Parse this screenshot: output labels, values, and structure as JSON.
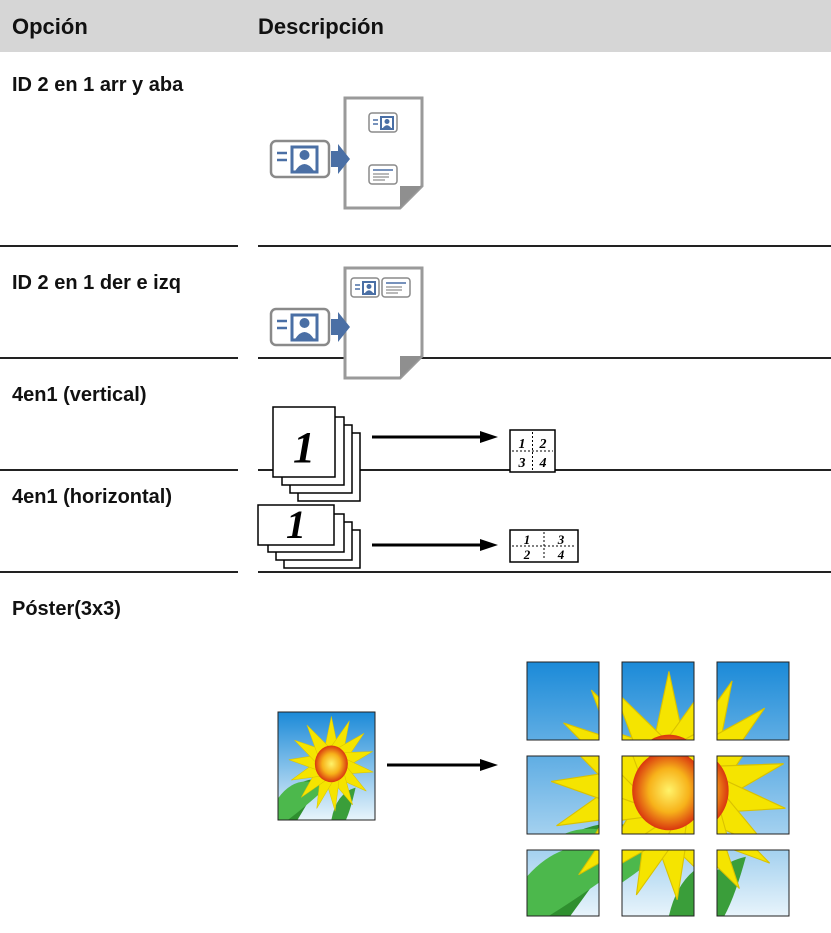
{
  "table": {
    "header": [
      "Opción",
      "Descripción"
    ],
    "rows": [
      {
        "option": "ID 2 en 1 arr y aba"
      },
      {
        "option": "ID 2 en 1 der e izq"
      },
      {
        "option": "4en1 (vertical)",
        "illustration": {
          "page": "1",
          "quadrants": [
            "1",
            "2",
            "3",
            "4"
          ]
        }
      },
      {
        "option": "4en1 (horizontal)",
        "illustration": {
          "page": "1",
          "quadrants": [
            "1",
            "3",
            "2",
            "4"
          ]
        }
      },
      {
        "option": "Póster(3x3)"
      }
    ]
  }
}
